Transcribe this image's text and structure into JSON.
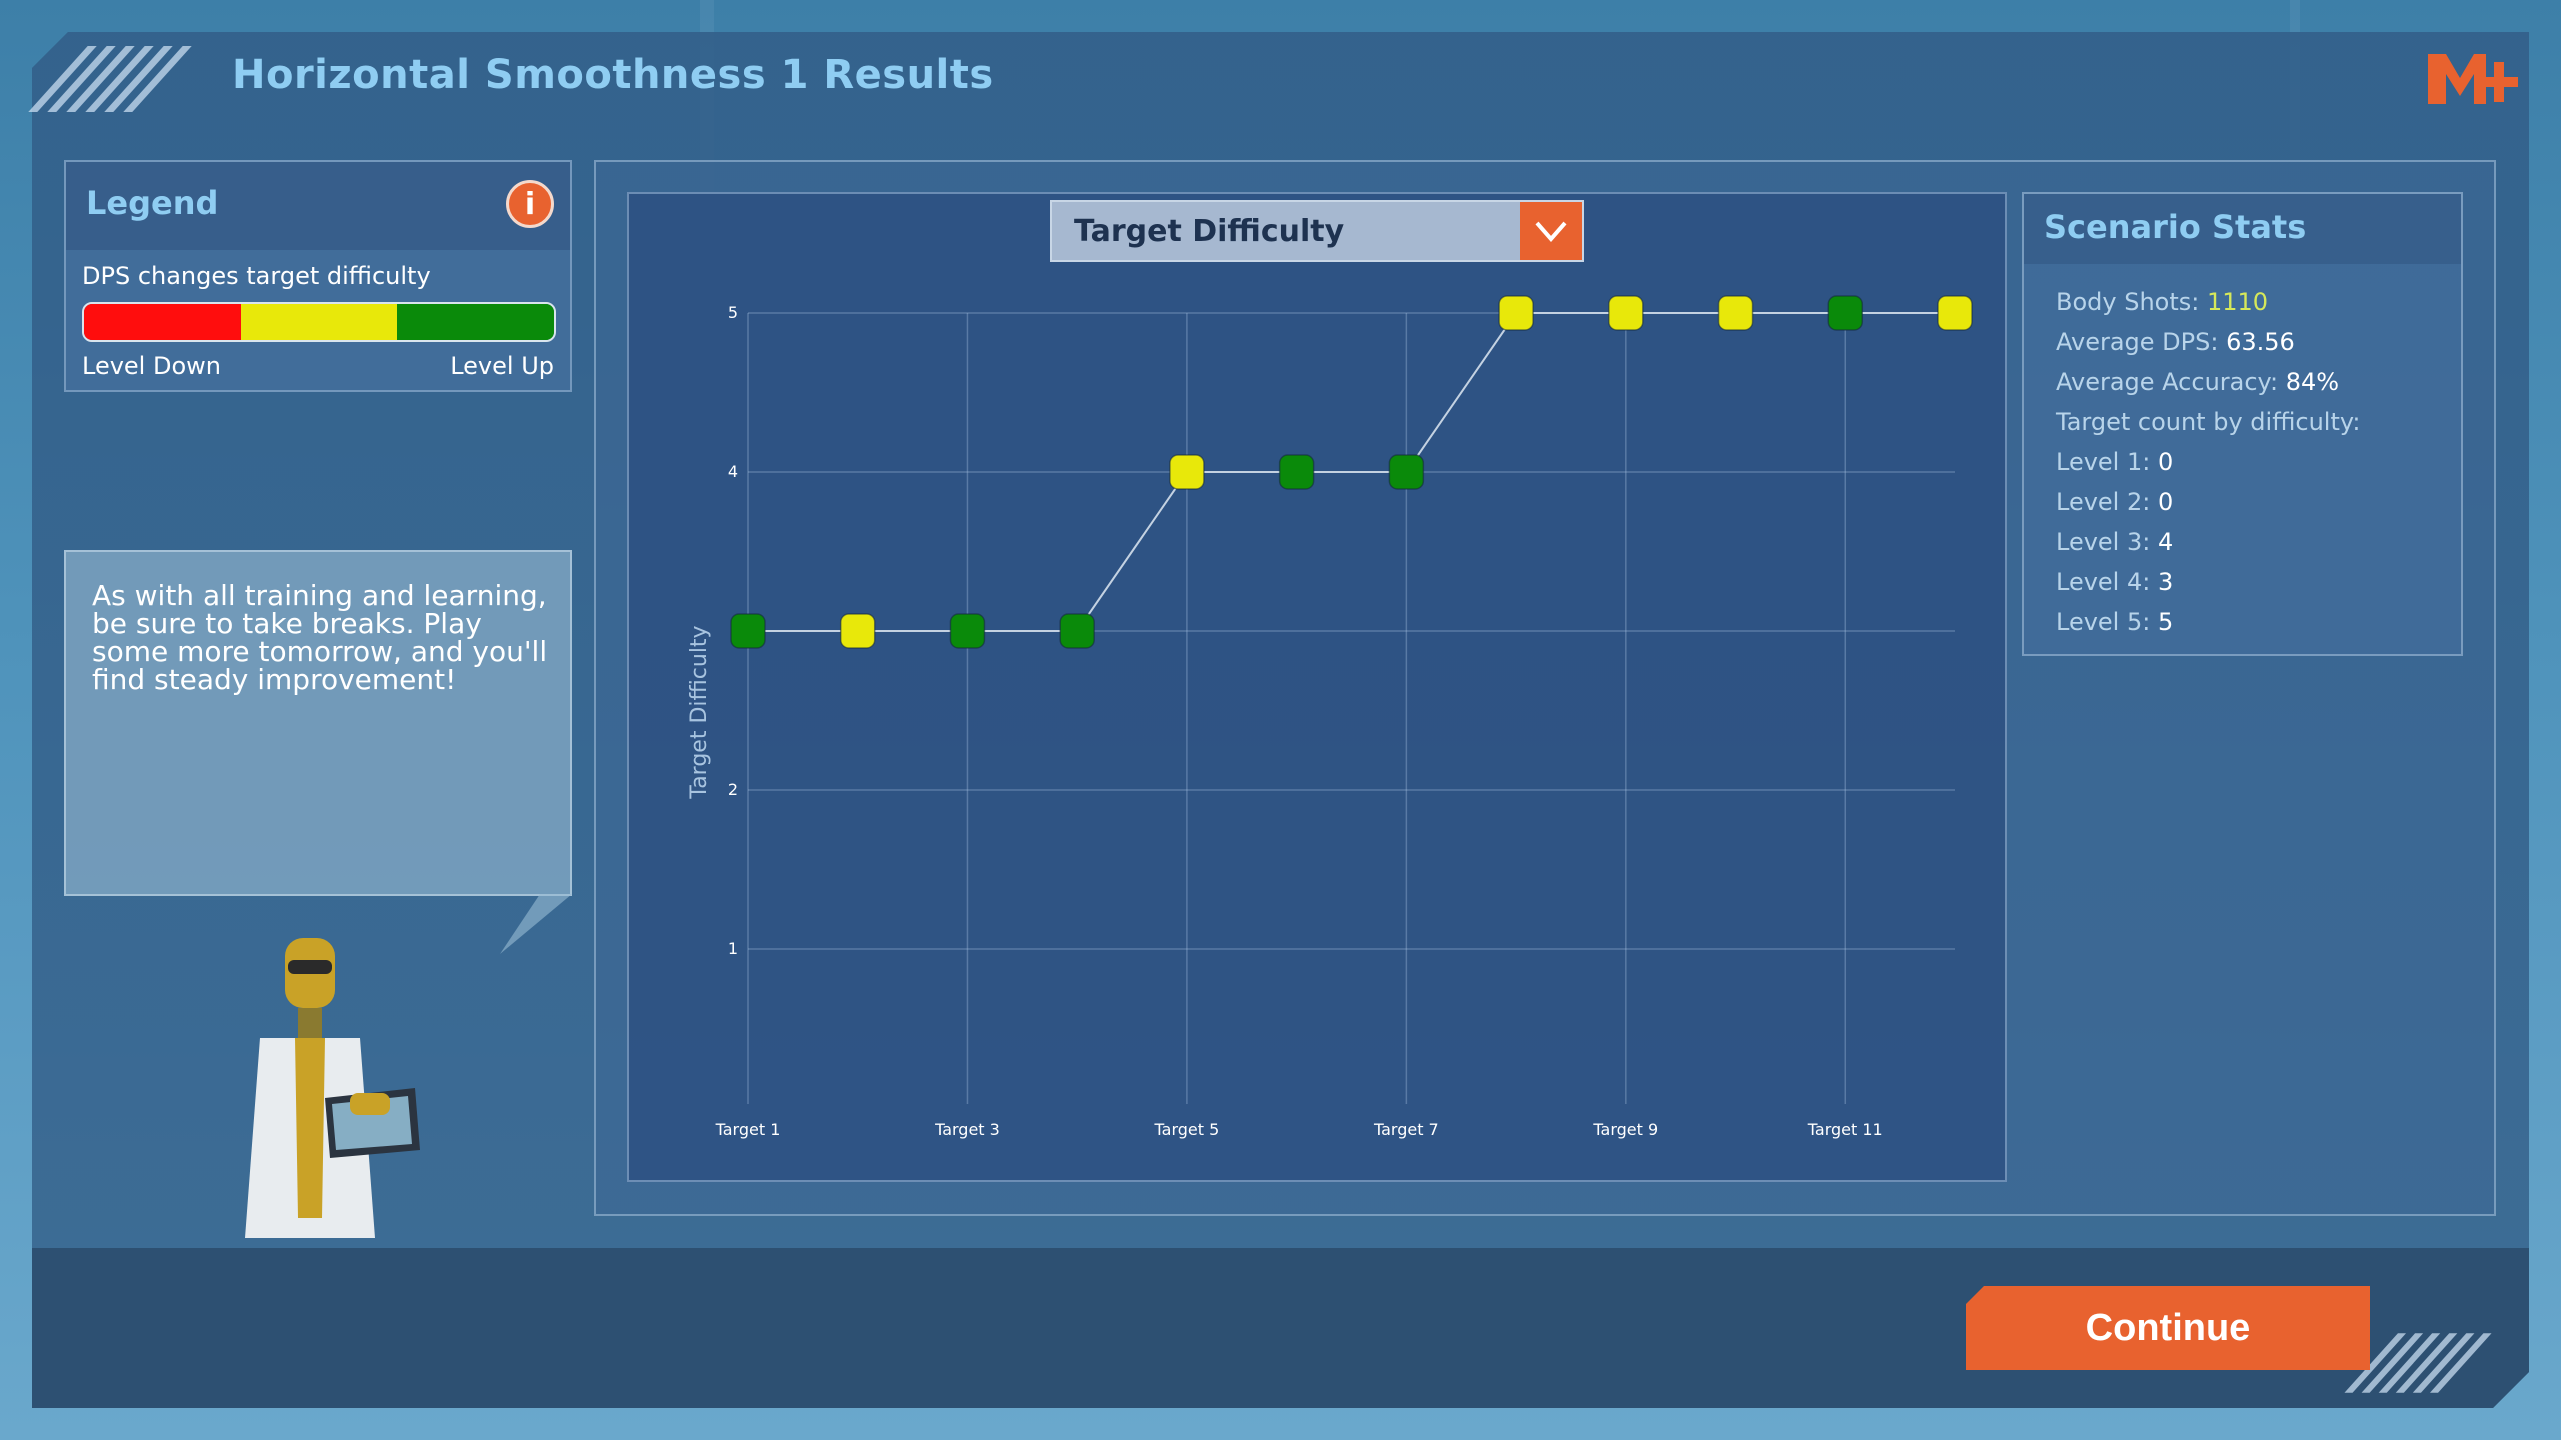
{
  "header": {
    "title": "Horizontal Smoothness 1 Results",
    "logo_icon": "m-plus-logo-icon"
  },
  "legend": {
    "title": "Legend",
    "info_icon": "info-icon",
    "description": "DPS changes target difficulty",
    "colors": [
      "#ff0d0d",
      "#e8e80a",
      "#0a8a0a"
    ],
    "low_label": "Level Down",
    "high_label": "Level Up"
  },
  "speech": {
    "text": "As with all training and learning, be sure to take breaks. Play some more tomorrow, and you'll find steady improvement!"
  },
  "dropdown": {
    "selected": "Target Difficulty",
    "icon": "chevron-down-icon"
  },
  "chart_data": {
    "type": "line",
    "title": "",
    "xlabel": "",
    "ylabel": "Target Difficulty",
    "x_tick_labels": [
      "Target 1",
      "Target 3",
      "Target 5",
      "Target 7",
      "Target 9",
      "Target 11"
    ],
    "x_tick_positions": [
      1,
      3,
      5,
      7,
      9,
      11
    ],
    "y_tick_labels": [
      "1",
      "2",
      "4",
      "5"
    ],
    "y_tick_values": [
      1,
      2,
      4,
      5
    ],
    "xlim": [
      1,
      12
    ],
    "ylim": [
      0,
      5
    ],
    "grid": true,
    "series": [
      {
        "x": [
          1,
          2,
          3,
          4,
          5,
          6,
          7,
          8,
          9,
          10,
          11,
          12
        ],
        "values": [
          3,
          3,
          3,
          3,
          4,
          4,
          4,
          5,
          5,
          5,
          5,
          5
        ],
        "marker_colors": [
          "#0a8a0a",
          "#e8e80a",
          "#0a8a0a",
          "#0a8a0a",
          "#e8e80a",
          "#0a8a0a",
          "#0a8a0a",
          "#e8e80a",
          "#e8e80a",
          "#e8e80a",
          "#0a8a0a",
          "#e8e80a"
        ]
      }
    ]
  },
  "stats": {
    "title": "Scenario Stats",
    "rows": [
      {
        "label": "Body Shots: ",
        "value": "1110",
        "accent": true
      },
      {
        "label": "Average DPS: ",
        "value": "63.56"
      },
      {
        "label": "Average Accuracy: ",
        "value": "84%"
      },
      {
        "label": "Target count by difficulty:",
        "value": ""
      },
      {
        "label": "Level 1: ",
        "value": "0"
      },
      {
        "label": "Level 2: ",
        "value": "0"
      },
      {
        "label": "Level 3: ",
        "value": "4"
      },
      {
        "label": "Level 4: ",
        "value": "3"
      },
      {
        "label": "Level 5: ",
        "value": "5"
      }
    ]
  },
  "footer": {
    "continue_label": "Continue"
  }
}
